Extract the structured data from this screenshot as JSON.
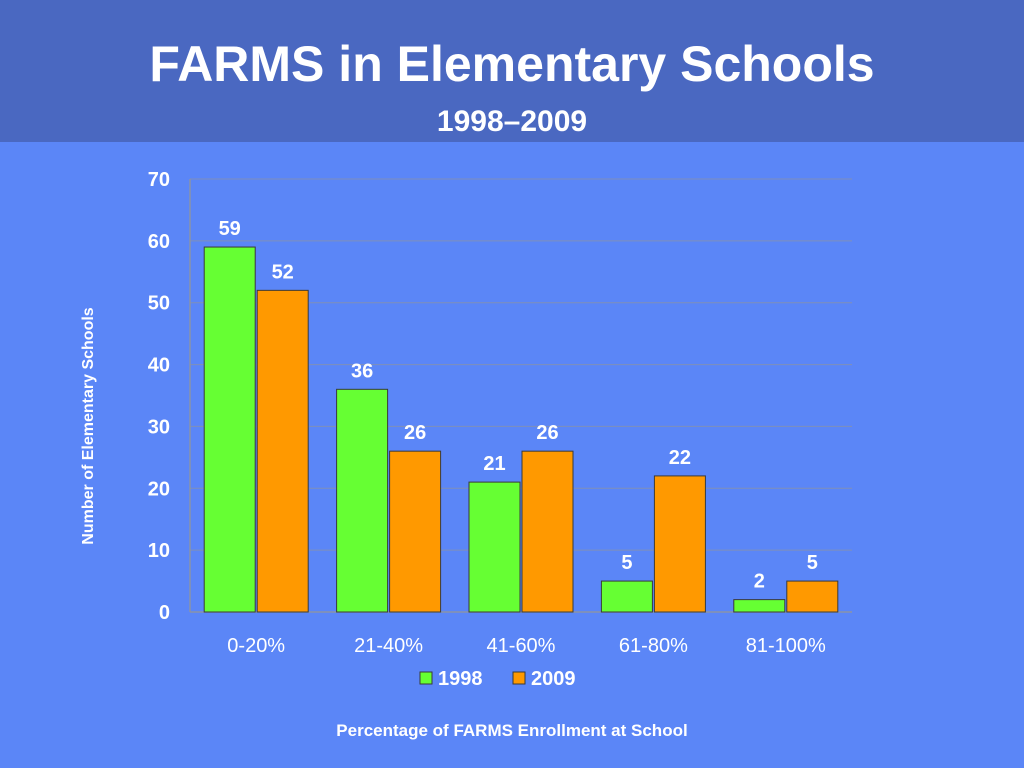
{
  "slide": {
    "title": "FARMS in Elementary Schools",
    "subtitle": "1998–2009",
    "caption": "Percentage of FARMS Enrollment at School"
  },
  "colors": {
    "background": "#5b86f7",
    "title_band": "#4a68c1",
    "series_1998": "#66ff33",
    "series_2009": "#ff9900",
    "text": "#ffffff",
    "label_text": "#ffffff",
    "grid": "#7f8fb8"
  },
  "chart_data": {
    "type": "bar",
    "title": "FARMS in Elementary Schools",
    "subtitle": "1998–2009",
    "xlabel": "Percentage of FARMS Enrollment at School",
    "ylabel": "Number of Elementary Schools",
    "categories": [
      "0-20%",
      "21-40%",
      "41-60%",
      "61-80%",
      "81-100%"
    ],
    "series": [
      {
        "name": "1998",
        "values": [
          59,
          36,
          21,
          5,
          2
        ]
      },
      {
        "name": "2009",
        "values": [
          52,
          26,
          26,
          22,
          5
        ]
      }
    ],
    "ylim": [
      0,
      70
    ],
    "yticks": [
      0,
      10,
      20,
      30,
      40,
      50,
      60,
      70
    ],
    "grid": true,
    "legend": "bottom",
    "data_labels": true
  }
}
